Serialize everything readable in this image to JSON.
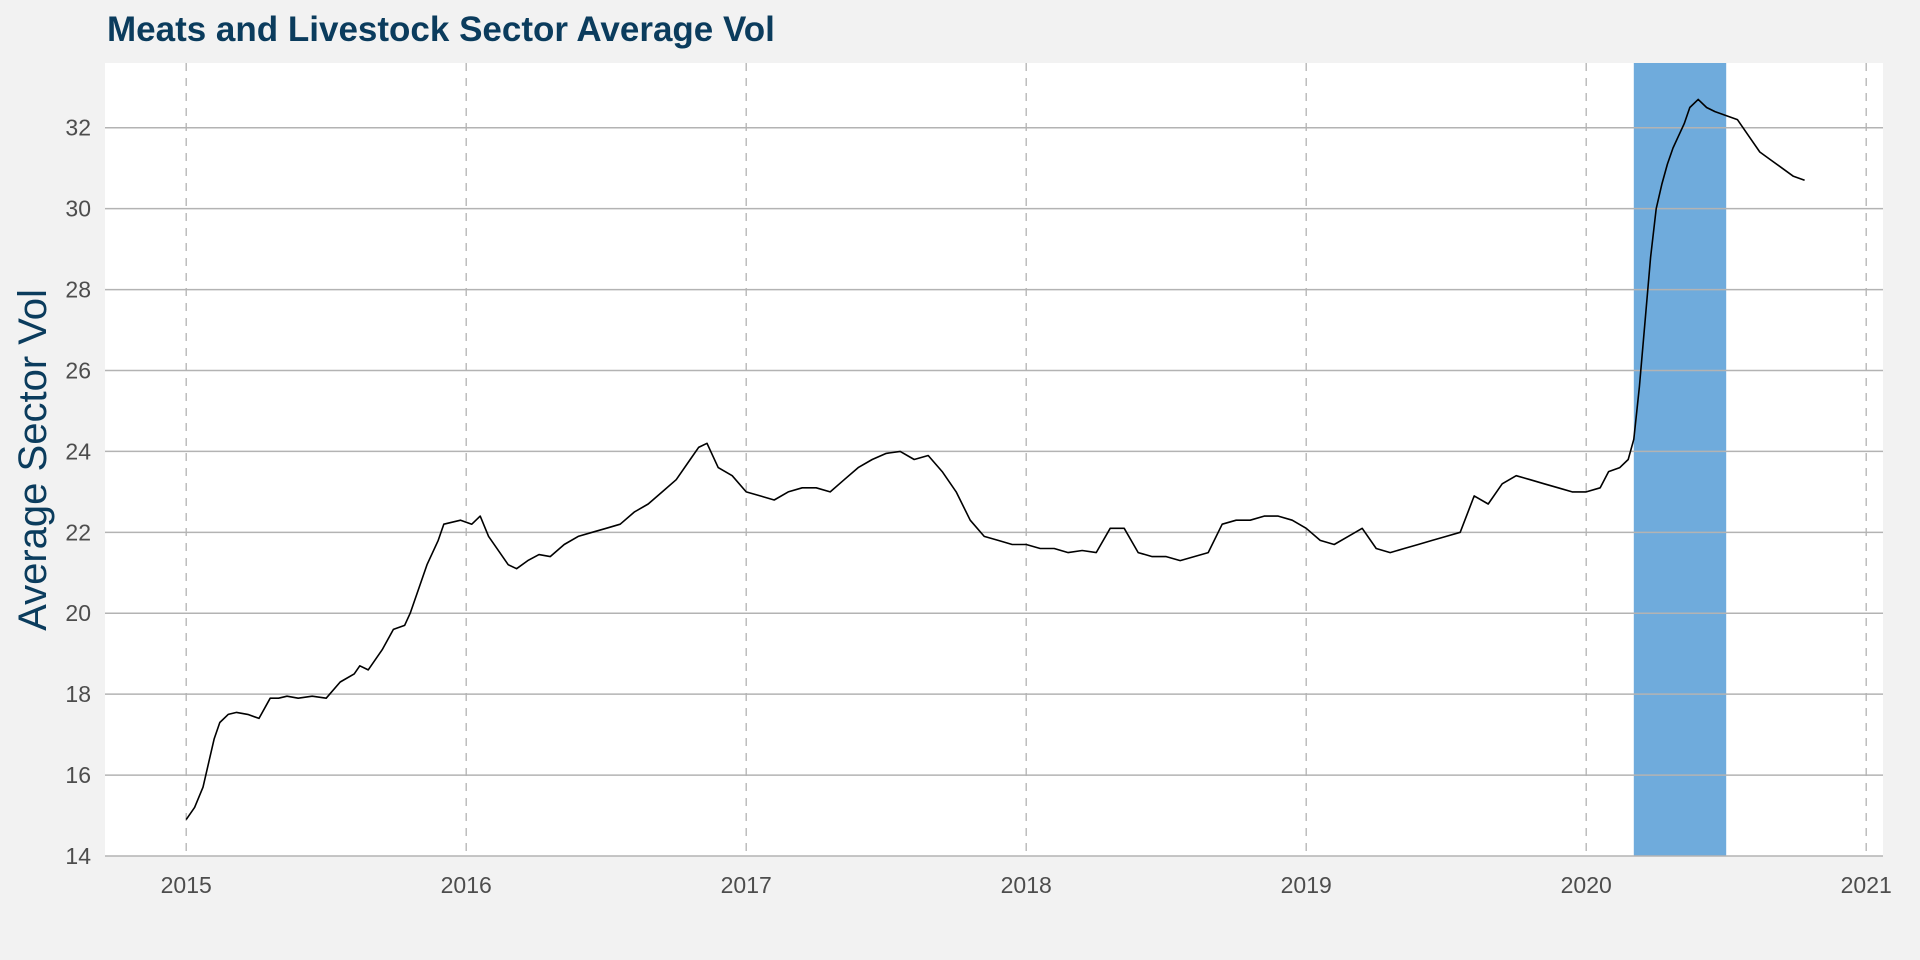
{
  "chart_data": {
    "type": "line",
    "title": "Meats and Livestock Sector Average Vol",
    "xlabel": "",
    "ylabel": "Average Sector Vol",
    "xlim": [
      2014.71,
      2021.06
    ],
    "ylim": [
      14,
      33.6
    ],
    "x_ticks": [
      2015,
      2016,
      2017,
      2018,
      2019,
      2020,
      2021
    ],
    "x_tick_labels": [
      "2015",
      "2016",
      "2017",
      "2018",
      "2019",
      "2020",
      "2021"
    ],
    "y_ticks": [
      14,
      16,
      18,
      20,
      22,
      24,
      26,
      28,
      30,
      32
    ],
    "y_tick_labels": [
      "14",
      "16",
      "18",
      "20",
      "22",
      "24",
      "26",
      "28",
      "30",
      "32"
    ],
    "grid": {
      "horizontal": "solid",
      "vertical": "dashed"
    },
    "shaded_region": {
      "x": [
        2020.17,
        2020.5
      ],
      "color": "#6fabdc"
    },
    "series": [
      {
        "color": "#000000",
        "x": [
          2015.0,
          2015.03,
          2015.06,
          2015.08,
          2015.1,
          2015.12,
          2015.15,
          2015.18,
          2015.22,
          2015.26,
          2015.3,
          2015.33,
          2015.36,
          2015.4,
          2015.45,
          2015.5,
          2015.55,
          2015.6,
          2015.62,
          2015.65,
          2015.7,
          2015.74,
          2015.78,
          2015.8,
          2015.83,
          2015.86,
          2015.88,
          2015.9,
          2015.92,
          2015.95,
          2015.98,
          2016.02,
          2016.05,
          2016.08,
          2016.12,
          2016.15,
          2016.18,
          2016.22,
          2016.26,
          2016.3,
          2016.35,
          2016.4,
          2016.45,
          2016.5,
          2016.55,
          2016.6,
          2016.65,
          2016.7,
          2016.75,
          2016.8,
          2016.83,
          2016.86,
          2016.9,
          2016.95,
          2017.0,
          2017.05,
          2017.1,
          2017.15,
          2017.2,
          2017.25,
          2017.3,
          2017.35,
          2017.4,
          2017.45,
          2017.5,
          2017.55,
          2017.6,
          2017.65,
          2017.7,
          2017.75,
          2017.8,
          2017.85,
          2017.9,
          2017.95,
          2018.0,
          2018.05,
          2018.1,
          2018.15,
          2018.2,
          2018.25,
          2018.3,
          2018.35,
          2018.4,
          2018.45,
          2018.5,
          2018.55,
          2018.6,
          2018.65,
          2018.7,
          2018.75,
          2018.8,
          2018.85,
          2018.9,
          2018.95,
          2019.0,
          2019.05,
          2019.1,
          2019.15,
          2019.2,
          2019.25,
          2019.3,
          2019.35,
          2019.4,
          2019.45,
          2019.5,
          2019.55,
          2019.6,
          2019.65,
          2019.7,
          2019.75,
          2019.8,
          2019.85,
          2019.9,
          2019.95,
          2020.0,
          2020.05,
          2020.08,
          2020.12,
          2020.15,
          2020.17,
          2020.19,
          2020.21,
          2020.23,
          2020.25,
          2020.27,
          2020.29,
          2020.31,
          2020.33,
          2020.35,
          2020.37,
          2020.4,
          2020.43,
          2020.46,
          2020.5,
          2020.54,
          2020.58,
          2020.62,
          2020.66,
          2020.7,
          2020.74,
          2020.78
        ],
        "y": [
          14.9,
          15.2,
          15.7,
          16.3,
          16.9,
          17.3,
          17.5,
          17.55,
          17.5,
          17.4,
          17.9,
          17.9,
          17.95,
          17.9,
          17.95,
          17.9,
          18.3,
          18.5,
          18.7,
          18.6,
          19.1,
          19.6,
          19.7,
          20.0,
          20.6,
          21.2,
          21.5,
          21.8,
          22.2,
          22.25,
          22.3,
          22.2,
          22.4,
          21.9,
          21.5,
          21.2,
          21.1,
          21.3,
          21.45,
          21.4,
          21.7,
          21.9,
          22.0,
          22.1,
          22.2,
          22.5,
          22.7,
          23.0,
          23.3,
          23.8,
          24.1,
          24.2,
          23.6,
          23.4,
          23.0,
          22.9,
          22.8,
          23.0,
          23.1,
          23.1,
          23.0,
          23.3,
          23.6,
          23.8,
          23.95,
          24.0,
          23.8,
          23.9,
          23.5,
          23.0,
          22.3,
          21.9,
          21.8,
          21.7,
          21.7,
          21.6,
          21.6,
          21.5,
          21.55,
          21.5,
          22.1,
          22.1,
          21.5,
          21.4,
          21.4,
          21.3,
          21.4,
          21.5,
          22.2,
          22.3,
          22.3,
          22.4,
          22.4,
          22.3,
          22.1,
          21.8,
          21.7,
          21.9,
          22.1,
          21.6,
          21.5,
          21.6,
          21.7,
          21.8,
          21.9,
          22.0,
          22.9,
          22.7,
          23.2,
          23.4,
          23.3,
          23.2,
          23.1,
          23.0,
          23.0,
          23.1,
          23.5,
          23.6,
          23.8,
          24.3,
          25.6,
          27.2,
          28.8,
          30.0,
          30.6,
          31.1,
          31.5,
          31.8,
          32.1,
          32.5,
          32.7,
          32.5,
          32.4,
          32.3,
          32.2,
          31.8,
          31.4,
          31.2,
          31.0,
          30.8,
          30.7
        ]
      }
    ]
  }
}
